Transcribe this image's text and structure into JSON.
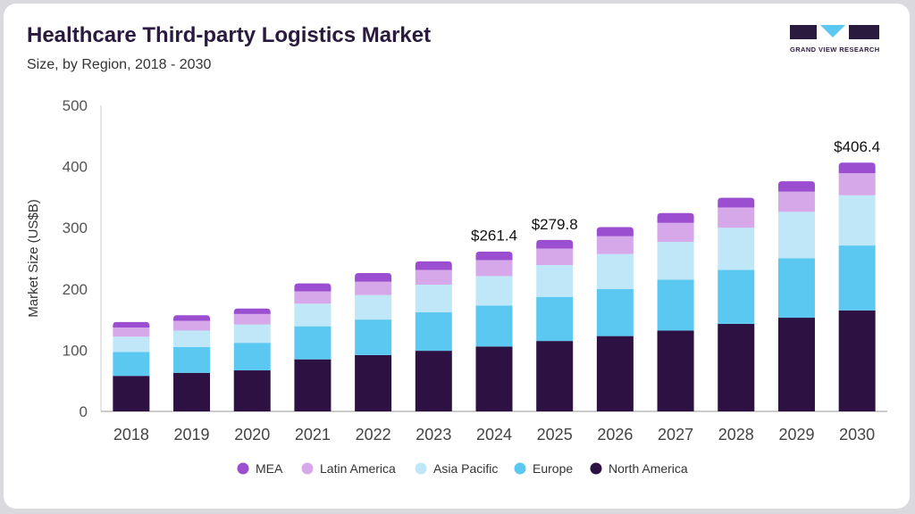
{
  "header": {
    "title": "Healthcare Third-party Logistics Market",
    "subtitle": "Size, by Region, 2018 - 2030"
  },
  "logo": {
    "text": "GRAND VIEW RESEARCH"
  },
  "colors": {
    "mea": "#9b4fd0",
    "latin_america": "#d6a8ea",
    "asia_pacific": "#bfe7f8",
    "europe": "#5bc8f2",
    "north_america": "#2c1142",
    "logo_accent": "#5bc8f2",
    "logo_dark": "#2a1a3e"
  },
  "chart_data": {
    "type": "bar",
    "stacked": true,
    "ylabel": "Market Size (US$B)",
    "xlabel": "",
    "ylim": [
      0,
      500
    ],
    "yticks": [
      0,
      100,
      200,
      300,
      400,
      500
    ],
    "grid": false,
    "legend_position": "bottom",
    "categories": [
      "2018",
      "2019",
      "2020",
      "2021",
      "2022",
      "2023",
      "2024",
      "2025",
      "2026",
      "2027",
      "2028",
      "2029",
      "2030"
    ],
    "series": [
      {
        "name": "North America",
        "color": "#2c1142",
        "values": [
          58,
          63,
          67,
          85,
          92,
          99,
          106,
          115,
          123,
          132,
          143,
          153,
          165
        ]
      },
      {
        "name": "Europe",
        "color": "#5bc8f2",
        "values": [
          39,
          42,
          45,
          54,
          58,
          63,
          67,
          72,
          77,
          83,
          88,
          97,
          106
        ]
      },
      {
        "name": "Asia Pacific",
        "color": "#bfe7f8",
        "values": [
          25,
          27,
          30,
          37,
          40,
          45,
          48,
          52,
          57,
          62,
          69,
          76,
          82
        ]
      },
      {
        "name": "Latin America",
        "color": "#d6a8ea",
        "values": [
          15,
          16,
          17,
          20,
          22,
          24,
          26,
          27,
          29,
          31,
          33,
          33,
          36
        ]
      },
      {
        "name": "MEA",
        "color": "#9b4fd0",
        "values": [
          9,
          9,
          9,
          13,
          14,
          14,
          14,
          14,
          15,
          16,
          16,
          17,
          17.4
        ]
      }
    ],
    "annotations": [
      {
        "category": "2024",
        "text": "$261.4",
        "value": 261.4
      },
      {
        "category": "2025",
        "text": "$279.8",
        "value": 279.8
      },
      {
        "category": "2030",
        "text": "$406.4",
        "value": 406.4
      }
    ]
  }
}
